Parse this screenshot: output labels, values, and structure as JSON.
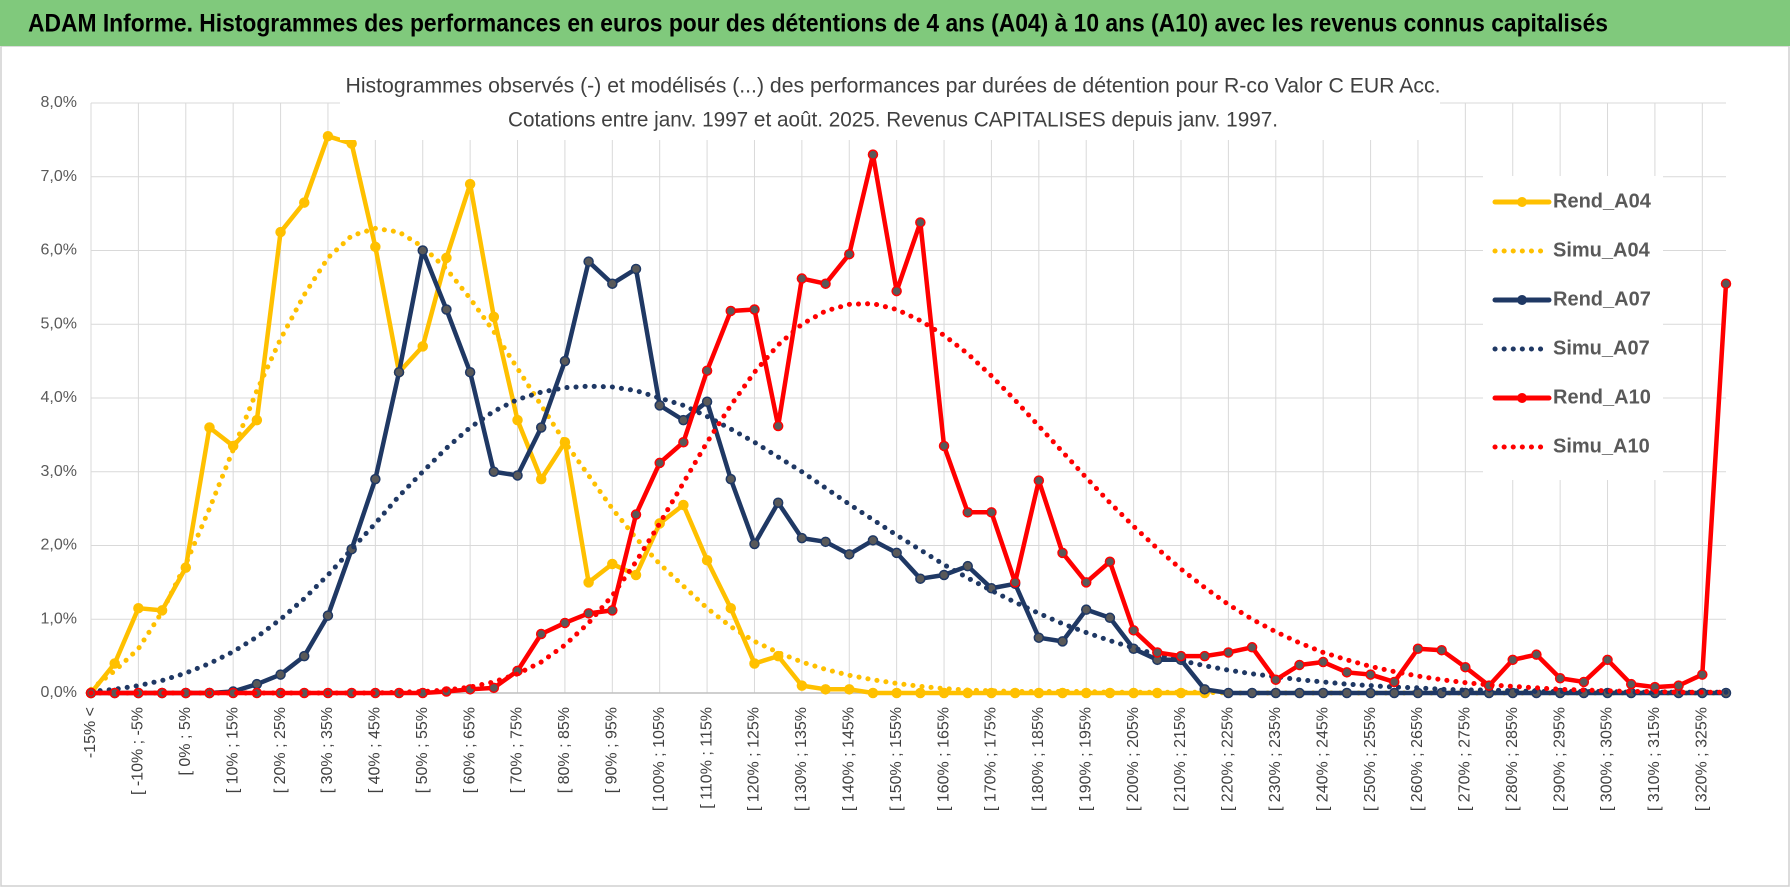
{
  "header": {
    "title": "ADAM Informe. Histogrammes des performances en euros pour des détentions de 4 ans (A04) à 10 ans (A10) avec les revenus connus capitalisés"
  },
  "chart_data": {
    "type": "line",
    "title": "Histogrammes observés (-) et modélisés (...) des performances par durées de détention pour R-co Valor C EUR Acc.",
    "subtitle": "Cotations entre janv. 1997 et août. 2025. Revenus CAPITALISES depuis janv. 1997.",
    "categories": [
      "-15% <",
      null,
      "[ -10% ; -5%",
      null,
      "[ 0% ; 5%",
      null,
      "[ 10% ; 15%",
      null,
      "[ 20% ; 25%",
      null,
      "[ 30% ; 35%",
      null,
      "[ 40% ; 45%",
      null,
      "[ 50% ; 55%",
      null,
      "[ 60% ; 65%",
      null,
      "[ 70% ; 75%",
      null,
      "[ 80% ; 85%",
      null,
      "[ 90% ; 95%",
      null,
      "[ 100% ; 105%",
      null,
      "[ 110% ; 115%",
      null,
      "[ 120% ; 125%",
      null,
      "[ 130% ; 135%",
      null,
      "[ 140% ; 145%",
      null,
      "[ 150% ; 155%",
      null,
      "[ 160% ; 165%",
      null,
      "[ 170% ; 175%",
      null,
      "[ 180% ; 185%",
      null,
      "[ 190% ; 195%",
      null,
      "[ 200% ; 205%",
      null,
      "[ 210% ; 215%",
      null,
      "[ 220% ; 225%",
      null,
      "[ 230% ; 235%",
      null,
      "[ 240% ; 245%",
      null,
      "[ 250% ; 255%",
      null,
      "[ 260% ; 265%",
      null,
      "[ 270% ; 275%",
      null,
      "[ 280% ; 285%",
      null,
      "[ 290% ; 295%",
      null,
      "[ 300% ; 305%",
      null,
      "[ 310% ; 315%",
      null,
      "[ 320% ; 325%",
      null
    ],
    "ylim": [
      0,
      8
    ],
    "yticks": [
      {
        "value": 0,
        "label": "0,0%"
      },
      {
        "value": 1,
        "label": "1,0%"
      },
      {
        "value": 2,
        "label": "2,0%"
      },
      {
        "value": 3,
        "label": "3,0%"
      },
      {
        "value": 4,
        "label": "4,0%"
      },
      {
        "value": 5,
        "label": "5,0%"
      },
      {
        "value": 6,
        "label": "6,0%"
      },
      {
        "value": 7,
        "label": "7,0%"
      },
      {
        "value": 8,
        "label": "8,0%"
      }
    ],
    "grid": true,
    "legend": "right",
    "series": [
      {
        "name": "Rend_A04",
        "color": "#FFC000",
        "dashed": false,
        "markers": true,
        "values": [
          0,
          0.4,
          1.15,
          1.12,
          1.7,
          3.6,
          3.35,
          3.7,
          6.25,
          6.65,
          7.55,
          7.45,
          6.05,
          4.35,
          4.7,
          5.9,
          6.9,
          5.1,
          3.7,
          2.9,
          3.4,
          1.5,
          1.75,
          1.6,
          2.3,
          2.55,
          1.8,
          1.15,
          0.4,
          0.5,
          0.1,
          0.05,
          0.05,
          0,
          0,
          0,
          0,
          0,
          0,
          0,
          0,
          0,
          0,
          0,
          0,
          0,
          0,
          0,
          null,
          null,
          null,
          null,
          null,
          null,
          null,
          null,
          null,
          null,
          null,
          null,
          null,
          null,
          null,
          null,
          null,
          null,
          null,
          null,
          null,
          null
        ]
      },
      {
        "name": "Simu_A04",
        "color": "#FFC000",
        "dashed": true,
        "markers": false,
        "values": [
          0.05,
          0.3,
          0.6,
          1.1,
          1.75,
          2.5,
          3.3,
          4.1,
          4.8,
          5.4,
          5.9,
          6.2,
          6.3,
          6.25,
          6.05,
          5.75,
          5.35,
          4.9,
          4.4,
          3.9,
          3.4,
          2.95,
          2.5,
          2.1,
          1.75,
          1.45,
          1.15,
          0.9,
          0.7,
          0.55,
          0.42,
          0.32,
          0.24,
          0.18,
          0.13,
          0.09,
          0.06,
          0.04,
          0.03,
          0.02,
          0.02,
          0.02,
          0.02,
          0.01,
          0.01,
          0.01,
          0.01,
          0.01,
          0,
          0,
          0,
          0,
          0,
          0,
          0,
          0,
          0,
          0,
          0,
          0,
          0,
          0,
          0,
          0,
          0,
          0,
          0,
          0,
          0,
          0
        ]
      },
      {
        "name": "Rend_A07",
        "color": "#1F3864",
        "dashed": false,
        "markers": true,
        "values": [
          0,
          0,
          0,
          0,
          0,
          0,
          0.02,
          0.12,
          0.25,
          0.5,
          1.05,
          1.95,
          2.9,
          4.35,
          6.0,
          5.2,
          4.35,
          3.0,
          2.95,
          3.6,
          4.5,
          5.85,
          5.55,
          5.75,
          3.9,
          3.7,
          3.95,
          2.9,
          2.02,
          2.58,
          2.1,
          2.05,
          1.88,
          2.07,
          1.9,
          1.55,
          1.6,
          1.72,
          1.42,
          1.48,
          0.75,
          0.7,
          1.13,
          1.02,
          0.6,
          0.45,
          0.45,
          0.05,
          0,
          0,
          0,
          0,
          0,
          0,
          0,
          0,
          0,
          0,
          0,
          0,
          0,
          0,
          0,
          0,
          0,
          0,
          0,
          0,
          0,
          0
        ]
      },
      {
        "name": "Simu_A07",
        "color": "#1F3864",
        "dashed": true,
        "markers": false,
        "values": [
          0.02,
          0.05,
          0.1,
          0.17,
          0.27,
          0.4,
          0.56,
          0.76,
          1.0,
          1.28,
          1.6,
          1.95,
          2.3,
          2.67,
          3.0,
          3.32,
          3.6,
          3.82,
          3.98,
          4.08,
          4.14,
          4.16,
          4.15,
          4.1,
          4.0,
          3.9,
          3.75,
          3.58,
          3.4,
          3.2,
          3.0,
          2.78,
          2.56,
          2.35,
          2.14,
          1.94,
          1.74,
          1.56,
          1.39,
          1.23,
          1.08,
          0.94,
          0.82,
          0.71,
          0.61,
          0.52,
          0.44,
          0.37,
          0.31,
          0.26,
          0.22,
          0.18,
          0.15,
          0.12,
          0.1,
          0.08,
          0.07,
          0.05,
          0.04,
          0.04,
          0.03,
          0.02,
          0.02,
          0.02,
          0.02,
          0.01,
          0.01,
          0.01,
          0.01,
          0.01
        ]
      },
      {
        "name": "Rend_A10",
        "color": "#FF0000",
        "dashed": false,
        "markers": true,
        "values": [
          0,
          0,
          0,
          0,
          0,
          0,
          0,
          0,
          0,
          0,
          0,
          0,
          0,
          0,
          0,
          0.02,
          0.05,
          0.07,
          0.3,
          0.8,
          0.95,
          1.08,
          1.12,
          2.42,
          3.12,
          3.4,
          4.37,
          5.18,
          5.2,
          3.62,
          5.62,
          5.55,
          5.95,
          7.3,
          5.45,
          6.38,
          3.35,
          2.45,
          2.45,
          1.5,
          2.88,
          1.9,
          1.5,
          1.78,
          0.85,
          0.55,
          0.5,
          0.5,
          0.55,
          0.62,
          0.18,
          0.38,
          0.42,
          0.28,
          0.25,
          0.15,
          0.6,
          0.58,
          0.35,
          0.1,
          0.45,
          0.52,
          0.2,
          0.15,
          0.45,
          0.12,
          0.08,
          0.1,
          0.25,
          5.55
        ]
      },
      {
        "name": "Simu_A10",
        "color": "#FF0000",
        "dashed": true,
        "markers": false,
        "values": [
          0,
          0,
          0,
          0,
          0,
          0,
          0,
          0,
          0,
          0,
          0,
          0,
          0,
          0.01,
          0.02,
          0.04,
          0.08,
          0.15,
          0.26,
          0.42,
          0.65,
          0.95,
          1.32,
          1.78,
          2.3,
          2.85,
          3.4,
          3.9,
          4.35,
          4.72,
          5.0,
          5.18,
          5.27,
          5.28,
          5.2,
          5.05,
          4.85,
          4.6,
          4.3,
          3.97,
          3.62,
          3.27,
          2.92,
          2.58,
          2.26,
          1.96,
          1.68,
          1.43,
          1.2,
          1.0,
          0.83,
          0.68,
          0.55,
          0.45,
          0.36,
          0.29,
          0.23,
          0.18,
          0.14,
          0.11,
          0.09,
          0.07,
          0.05,
          0.04,
          0.03,
          0.02,
          0.02,
          0.01,
          0.01,
          0.01
        ]
      }
    ]
  }
}
